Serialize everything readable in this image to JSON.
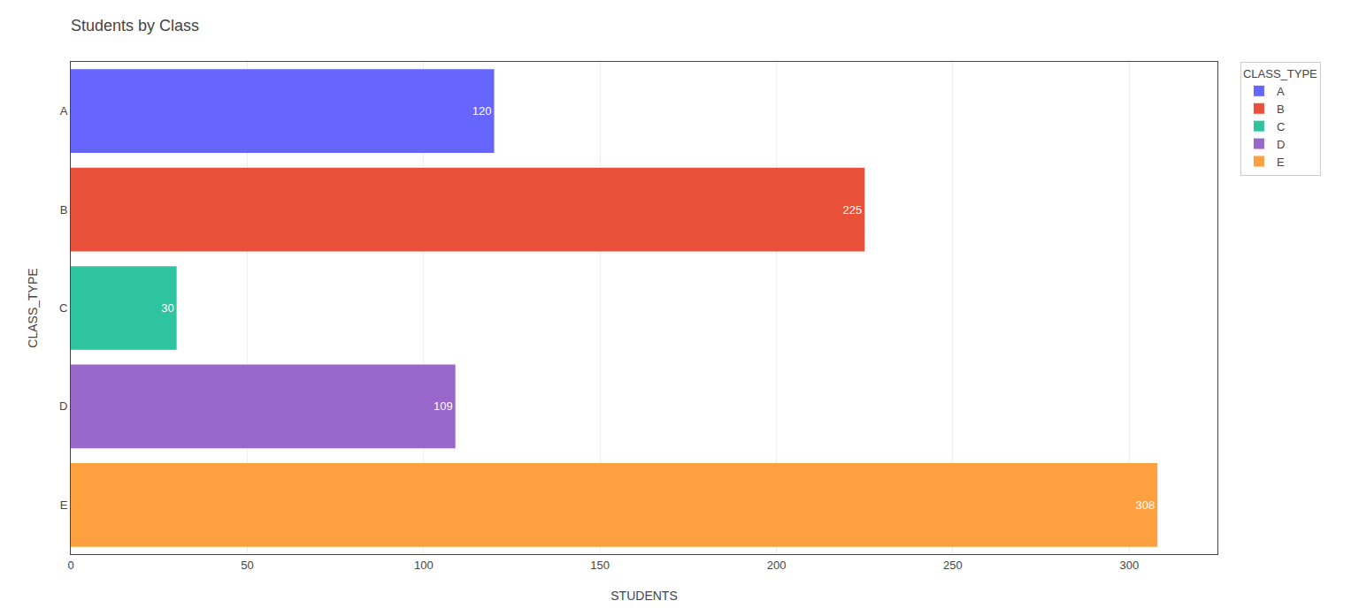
{
  "chart_data": {
    "type": "bar",
    "orientation": "horizontal",
    "title": "Students by Class",
    "xlabel": "STUDENTS",
    "ylabel": "CLASS_TYPE",
    "legend_title": "CLASS_TYPE",
    "categories": [
      "A",
      "B",
      "C",
      "D",
      "E"
    ],
    "values": [
      120,
      225,
      30,
      109,
      308
    ],
    "colors": [
      "#6666ff",
      "#e8503a",
      "#2ec4a0",
      "#9966cc",
      "#ffa040"
    ],
    "xlim": [
      0,
      325
    ],
    "xticks": [
      0,
      50,
      100,
      150,
      200,
      250,
      300
    ],
    "grid": true,
    "legend": "right",
    "data_labels": true
  }
}
